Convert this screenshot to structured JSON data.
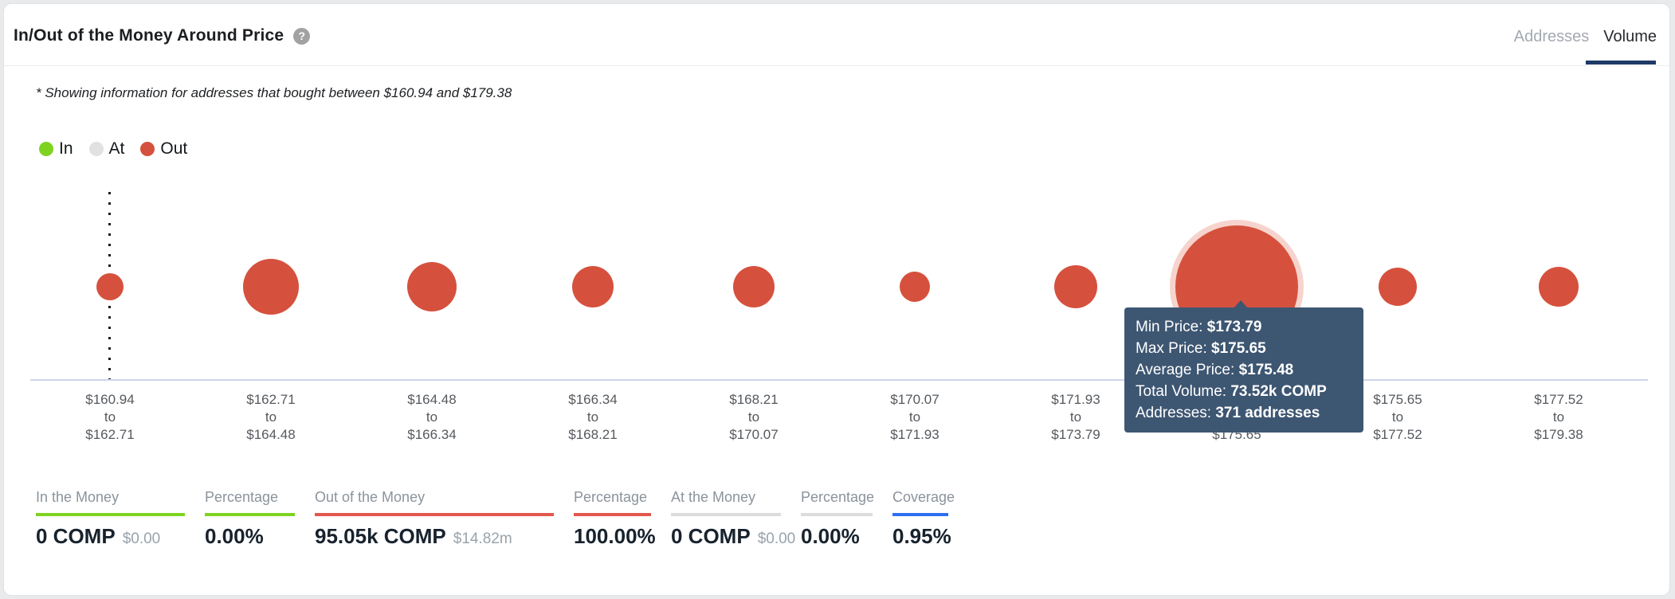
{
  "header": {
    "title": "In/Out of the Money Around Price",
    "help_icon": "?",
    "tabs": [
      {
        "label": "Addresses",
        "active": false
      },
      {
        "label": "Volume",
        "active": true
      }
    ],
    "active_tab_underline_color": "#1f3a67"
  },
  "subtitle": "* Showing information for addresses that bought between $160.94 and $179.38",
  "legend": {
    "items": [
      {
        "label": "In",
        "color": "#7ed321"
      },
      {
        "label": "At",
        "color": "#e1e1e1"
      },
      {
        "label": "Out",
        "color": "#d5513d"
      }
    ]
  },
  "chart_data": {
    "type": "bubble",
    "description": "In/Out of the Money Around Price - volume bubbles per price bucket",
    "to_word": "to",
    "series_color": "#d5513d",
    "axis_line_color": "#ccd6eb",
    "y_axis_clipped_label": "0",
    "current_price_marker_bucket_index": 0,
    "buckets": [
      {
        "min": "$160.94",
        "max": "$162.71",
        "category": "Out",
        "bubble_radius_px": 17
      },
      {
        "min": "$162.71",
        "max": "$164.48",
        "category": "Out",
        "bubble_radius_px": 35
      },
      {
        "min": "$164.48",
        "max": "$166.34",
        "category": "Out",
        "bubble_radius_px": 31
      },
      {
        "min": "$166.34",
        "max": "$168.21",
        "category": "Out",
        "bubble_radius_px": 26
      },
      {
        "min": "$168.21",
        "max": "$170.07",
        "category": "Out",
        "bubble_radius_px": 26
      },
      {
        "min": "$170.07",
        "max": "$171.93",
        "category": "Out",
        "bubble_radius_px": 19
      },
      {
        "min": "$171.93",
        "max": "$173.79",
        "category": "Out",
        "bubble_radius_px": 27
      },
      {
        "min": "$173.79",
        "max": "$175.65",
        "category": "Out",
        "bubble_radius_px": 77,
        "highlighted": true,
        "total_volume": "73.52k COMP",
        "average_price": "$175.48",
        "addresses": "371 addresses"
      },
      {
        "min": "$175.65",
        "max": "$177.52",
        "category": "Out",
        "bubble_radius_px": 24
      },
      {
        "min": "$177.52",
        "max": "$179.38",
        "category": "Out",
        "bubble_radius_px": 25
      }
    ]
  },
  "tooltip": {
    "bg_color": "#3d5672",
    "rows": [
      {
        "label": "Min Price: ",
        "value": "$173.79"
      },
      {
        "label": "Max Price: ",
        "value": "$175.65"
      },
      {
        "label": "Average Price: ",
        "value": "$175.48"
      },
      {
        "label": "Total Volume: ",
        "value": "73.52k COMP"
      },
      {
        "label": "Addresses: ",
        "value": "371 addresses"
      }
    ]
  },
  "footer": {
    "stats": [
      {
        "label": "In the Money",
        "value": "0 COMP",
        "sub": "$0.00",
        "underline_color": "#7ed321"
      },
      {
        "label": "Percentage",
        "value": "0.00%",
        "sub": "",
        "underline_color": "#7ed321"
      },
      {
        "label": "Out of the Money",
        "value": "95.05k COMP",
        "sub": "$14.82m",
        "underline_color": "#e2574c"
      },
      {
        "label": "Percentage",
        "value": "100.00%",
        "sub": "",
        "underline_color": "#e2574c"
      },
      {
        "label": "At the Money",
        "value": "0 COMP",
        "sub": "$0.00",
        "underline_color": "#dcdcdc"
      },
      {
        "label": "Percentage",
        "value": "0.00%",
        "sub": "",
        "underline_color": "#dcdcdc"
      },
      {
        "label": "Coverage",
        "value": "0.95%",
        "sub": "",
        "underline_color": "#2d6ff2"
      }
    ]
  }
}
